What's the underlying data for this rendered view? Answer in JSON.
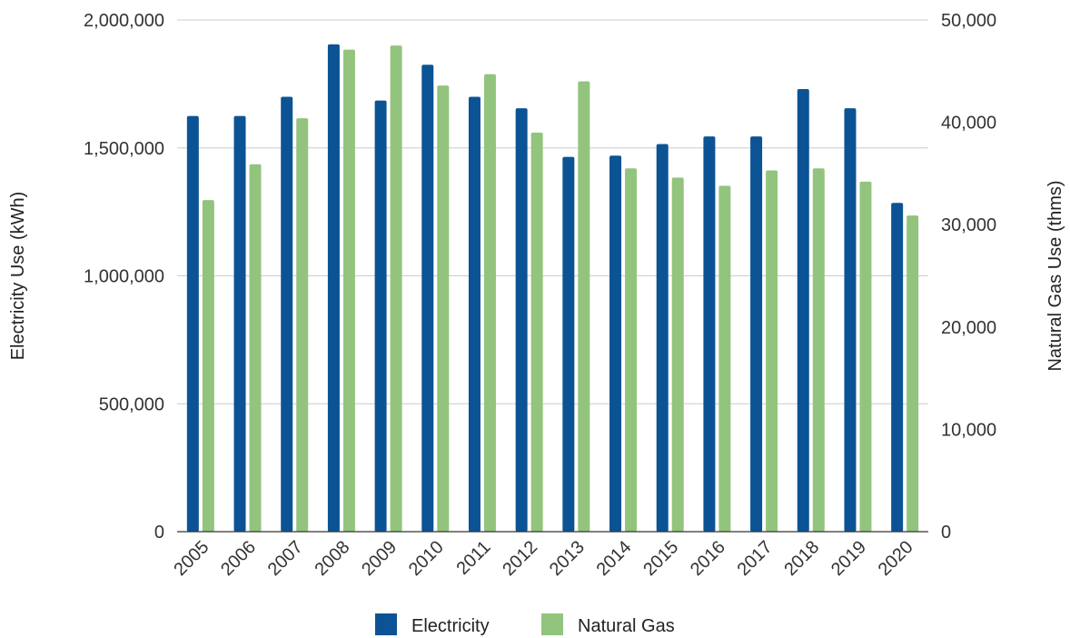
{
  "chart_data": {
    "type": "bar",
    "categories": [
      "2005",
      "2006",
      "2007",
      "2008",
      "2009",
      "2010",
      "2011",
      "2012",
      "2013",
      "2014",
      "2015",
      "2016",
      "2017",
      "2018",
      "2019",
      "2020"
    ],
    "series": [
      {
        "name": "Electricity",
        "axis": "left",
        "color": "#0b5394",
        "values": [
          1625000,
          1625000,
          1700000,
          1905000,
          1685000,
          1825000,
          1700000,
          1655000,
          1465000,
          1470000,
          1515000,
          1545000,
          1545000,
          1730000,
          1655000,
          1285000
        ]
      },
      {
        "name": "Natural Gas",
        "axis": "right",
        "color": "#93c47d",
        "values": [
          32400,
          35900,
          40400,
          47100,
          47500,
          43600,
          44700,
          39000,
          44000,
          35500,
          34600,
          33800,
          35300,
          35500,
          34200,
          30900
        ]
      }
    ],
    "ylabel": "Electricity Use (kWh)",
    "y2label": "Natural Gas Use (thms)",
    "ylim": [
      0,
      2000000
    ],
    "y2lim": [
      0,
      50000
    ],
    "yticks": [
      0,
      500000,
      1000000,
      1500000,
      2000000
    ],
    "y2ticks": [
      0,
      10000,
      20000,
      30000,
      40000,
      50000
    ],
    "ytick_labels": [
      "0",
      "500,000",
      "1,000,000",
      "1,500,000",
      "2,000,000"
    ],
    "y2tick_labels": [
      "0",
      "10,000",
      "20,000",
      "30,000",
      "40,000",
      "50,000"
    ],
    "grid": true,
    "legend_position": "bottom"
  }
}
